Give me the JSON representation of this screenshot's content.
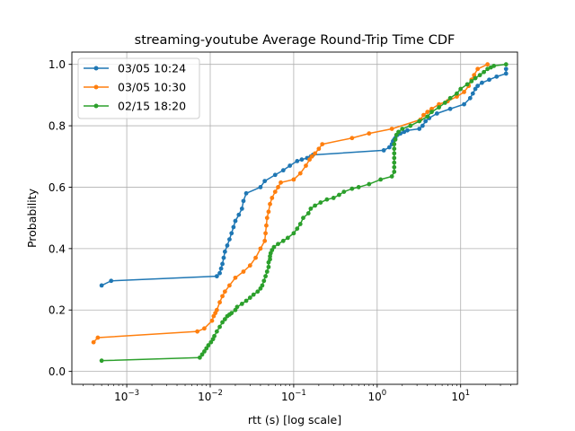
{
  "chart_data": {
    "type": "line",
    "title": "streaming-youtube Average Round-Trip Time CDF",
    "xlabel": "rtt (s) [log scale]",
    "ylabel": "Probability",
    "xscale": "log",
    "xlim": [
      0.00022,
      48
    ],
    "ylim": [
      -0.042,
      1.04
    ],
    "x_ticks": [
      {
        "value": 0.001,
        "base": "10",
        "exp": "−3"
      },
      {
        "value": 0.01,
        "base": "10",
        "exp": "−2"
      },
      {
        "value": 0.1,
        "base": "10",
        "exp": "−1"
      },
      {
        "value": 1,
        "base": "10",
        "exp": "0"
      },
      {
        "value": 10,
        "base": "10",
        "exp": "1"
      }
    ],
    "y_ticks": [
      {
        "value": 0.0,
        "label": "0.0"
      },
      {
        "value": 0.2,
        "label": "0.2"
      },
      {
        "value": 0.4,
        "label": "0.4"
      },
      {
        "value": 0.6,
        "label": "0.6"
      },
      {
        "value": 0.8,
        "label": "0.8"
      },
      {
        "value": 1.0,
        "label": "1.0"
      }
    ],
    "grid": true,
    "legend_position": "upper-left",
    "series": [
      {
        "name": "03/05 10:24",
        "color": "#1f77b4",
        "x": [
          0.0005,
          0.00065,
          0.012,
          0.013,
          0.0135,
          0.014,
          0.0145,
          0.015,
          0.016,
          0.017,
          0.018,
          0.019,
          0.02,
          0.022,
          0.024,
          0.025,
          0.027,
          0.04,
          0.045,
          0.06,
          0.075,
          0.09,
          0.11,
          0.125,
          0.145,
          0.16,
          0.17,
          1.2,
          1.4,
          1.5,
          1.55,
          1.6,
          1.65,
          1.75,
          1.9,
          2.1,
          2.3,
          3.2,
          3.5,
          3.8,
          4.2,
          5.2,
          7.5,
          11,
          13,
          14,
          15,
          16,
          18,
          22,
          27,
          35,
          35
        ],
        "y": [
          0.28,
          0.295,
          0.31,
          0.32,
          0.335,
          0.35,
          0.37,
          0.39,
          0.41,
          0.43,
          0.45,
          0.47,
          0.49,
          0.51,
          0.53,
          0.555,
          0.58,
          0.6,
          0.62,
          0.64,
          0.655,
          0.67,
          0.685,
          0.69,
          0.695,
          0.7,
          0.705,
          0.72,
          0.73,
          0.74,
          0.75,
          0.755,
          0.76,
          0.77,
          0.775,
          0.78,
          0.785,
          0.79,
          0.8,
          0.815,
          0.825,
          0.84,
          0.855,
          0.87,
          0.89,
          0.905,
          0.92,
          0.93,
          0.94,
          0.95,
          0.96,
          0.97,
          0.985
        ]
      },
      {
        "name": "03/05 10:30",
        "color": "#ff7f0e",
        "x": [
          0.0004,
          0.00045,
          0.007,
          0.0085,
          0.0105,
          0.011,
          0.0115,
          0.012,
          0.013,
          0.014,
          0.015,
          0.017,
          0.02,
          0.025,
          0.03,
          0.035,
          0.04,
          0.045,
          0.046,
          0.047,
          0.048,
          0.05,
          0.052,
          0.055,
          0.06,
          0.065,
          0.07,
          0.1,
          0.12,
          0.14,
          0.155,
          0.165,
          0.18,
          0.2,
          0.22,
          0.5,
          0.8,
          1.5,
          3.3,
          3.6,
          4,
          4.5,
          5.5,
          7,
          9,
          11,
          12.5,
          13.5,
          14.5,
          16,
          21
        ],
        "y": [
          0.095,
          0.11,
          0.13,
          0.14,
          0.165,
          0.18,
          0.19,
          0.2,
          0.225,
          0.245,
          0.26,
          0.28,
          0.305,
          0.325,
          0.345,
          0.37,
          0.4,
          0.425,
          0.45,
          0.475,
          0.5,
          0.52,
          0.545,
          0.565,
          0.585,
          0.6,
          0.615,
          0.625,
          0.645,
          0.67,
          0.69,
          0.7,
          0.71,
          0.725,
          0.74,
          0.76,
          0.775,
          0.79,
          0.82,
          0.835,
          0.845,
          0.855,
          0.87,
          0.88,
          0.895,
          0.91,
          0.93,
          0.95,
          0.965,
          0.985,
          1.0
        ]
      },
      {
        "name": "02/15 18:20",
        "color": "#2ca02c",
        "x": [
          0.0005,
          0.0075,
          0.008,
          0.0085,
          0.009,
          0.0095,
          0.0102,
          0.0108,
          0.0112,
          0.012,
          0.013,
          0.014,
          0.015,
          0.016,
          0.017,
          0.018,
          0.02,
          0.021,
          0.024,
          0.027,
          0.03,
          0.033,
          0.037,
          0.04,
          0.042,
          0.044,
          0.046,
          0.048,
          0.05,
          0.05,
          0.052,
          0.052,
          0.053,
          0.055,
          0.058,
          0.065,
          0.075,
          0.085,
          0.1,
          0.11,
          0.12,
          0.13,
          0.15,
          0.16,
          0.18,
          0.21,
          0.25,
          0.3,
          0.35,
          0.4,
          0.5,
          0.6,
          0.8,
          1.1,
          1.5,
          1.6,
          1.6,
          1.6,
          1.6,
          1.6,
          1.6,
          1.6,
          1.65,
          1.7,
          1.8,
          2.0,
          2.5,
          3.2,
          4.0,
          4.5,
          5.5,
          6.5,
          7.5,
          9,
          10,
          12,
          13.5,
          15,
          17,
          19,
          21,
          23,
          25,
          35
        ],
        "y": [
          0.035,
          0.045,
          0.055,
          0.065,
          0.075,
          0.085,
          0.095,
          0.105,
          0.115,
          0.13,
          0.145,
          0.16,
          0.17,
          0.18,
          0.185,
          0.19,
          0.2,
          0.21,
          0.22,
          0.23,
          0.24,
          0.25,
          0.26,
          0.27,
          0.28,
          0.295,
          0.31,
          0.325,
          0.34,
          0.355,
          0.365,
          0.375,
          0.385,
          0.395,
          0.405,
          0.415,
          0.425,
          0.435,
          0.45,
          0.465,
          0.48,
          0.5,
          0.515,
          0.53,
          0.54,
          0.55,
          0.56,
          0.565,
          0.575,
          0.585,
          0.595,
          0.6,
          0.61,
          0.625,
          0.635,
          0.65,
          0.665,
          0.68,
          0.695,
          0.71,
          0.725,
          0.74,
          0.755,
          0.77,
          0.78,
          0.79,
          0.8,
          0.815,
          0.83,
          0.845,
          0.86,
          0.875,
          0.89,
          0.905,
          0.92,
          0.935,
          0.945,
          0.955,
          0.965,
          0.975,
          0.985,
          0.99,
          0.995,
          1.0
        ]
      }
    ]
  }
}
